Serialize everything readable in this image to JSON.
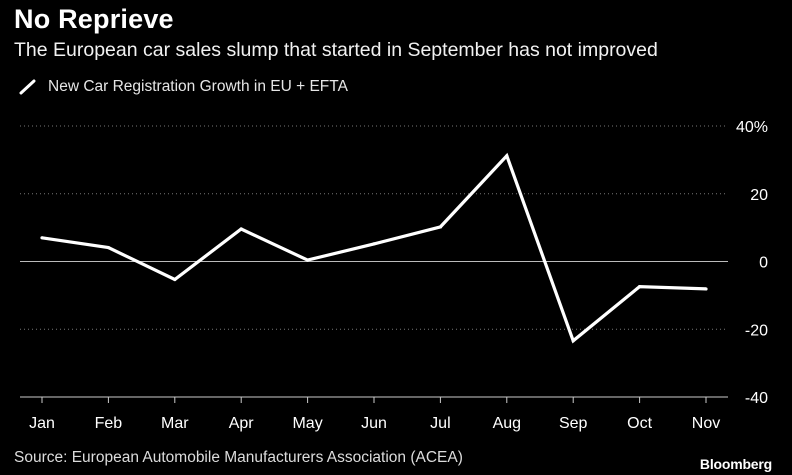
{
  "header": {
    "title": "No Reprieve",
    "subtitle": "The European car sales slump that started in September has not improved"
  },
  "legend": {
    "label": "New Car Registration Growth in EU + EFTA"
  },
  "footer": {
    "source": "Source: European Automobile Manufacturers Association (ACEA)",
    "brand": "Bloomberg"
  },
  "colors": {
    "background": "#000000",
    "line": "#ffffff",
    "grid": "#777777"
  },
  "chart_data": {
    "type": "line",
    "title": "No Reprieve",
    "subtitle": "The European car sales slump that started in September has not improved",
    "categories": [
      "Jan",
      "Feb",
      "Mar",
      "Apr",
      "May",
      "Jun",
      "Jul",
      "Aug",
      "Sep",
      "Oct",
      "Nov"
    ],
    "series": [
      {
        "name": "New Car Registration Growth in EU + EFTA",
        "values": [
          7,
          4.1,
          -5.3,
          9.6,
          0.4,
          5.2,
          10.2,
          31.2,
          -23.4,
          -7.4,
          -8.1
        ]
      }
    ],
    "ylim": [
      -40,
      40
    ],
    "yticks": [
      -40,
      -20,
      0,
      20,
      40
    ],
    "ytick_labels": [
      "-40",
      "-20",
      "0",
      "20",
      "40%"
    ],
    "grid": true,
    "legend_position": "top-left",
    "xlabel": "",
    "ylabel": ""
  }
}
